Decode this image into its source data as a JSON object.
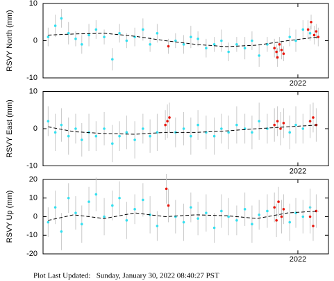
{
  "chart_data": [
    {
      "type": "scatter",
      "ylabel": "RSVY North (mm)",
      "xlim": [
        2019.5,
        2022.3
      ],
      "ylim": [
        -10,
        10
      ],
      "yticks": [
        -10,
        0,
        10
      ],
      "xticks": [
        2022
      ],
      "series": [
        {
          "color": "#33e0f0",
          "x": [
            2019.55,
            2019.62,
            2019.68,
            2019.75,
            2019.82,
            2019.88,
            2019.95,
            2020.02,
            2020.1,
            2020.18,
            2020.25,
            2020.32,
            2020.4,
            2020.48,
            2020.55,
            2020.62,
            2020.8,
            2020.88,
            2020.95,
            2021.02,
            2021.1,
            2021.18,
            2021.25,
            2021.32,
            2021.4,
            2021.48,
            2021.55,
            2021.62,
            2021.7,
            2021.92,
            2021.98,
            2022.05,
            2022.12
          ],
          "values": [
            1,
            4,
            6,
            2,
            0.5,
            -1,
            1.5,
            3,
            1,
            -5,
            2,
            0,
            1,
            3,
            -1,
            2,
            0,
            -1,
            1,
            0.5,
            -2,
            -1,
            0,
            -3,
            -1,
            -2,
            0,
            -4,
            -1,
            1,
            0,
            3,
            2
          ],
          "errors": [
            2.5,
            3,
            2.5,
            3,
            2,
            2.5,
            3,
            2.5,
            2,
            3,
            2.5,
            2,
            2.5,
            3,
            2,
            2.5,
            2,
            2.5,
            3,
            2,
            2.5,
            2,
            3,
            2.5,
            2,
            3,
            2.5,
            3,
            2,
            2.5,
            3,
            2.5,
            2
          ]
        },
        {
          "color": "#e8160c",
          "x": [
            2020.73,
            2021.77,
            2021.79,
            2021.8,
            2021.82,
            2021.84,
            2021.86,
            2022.1,
            2022.13,
            2022.16,
            2022.18,
            2022.2
          ],
          "values": [
            -1.5,
            -2,
            -3,
            -4.5,
            -1,
            -2.5,
            -3.5,
            3,
            5,
            1.5,
            2.5,
            1
          ],
          "errors": [
            2,
            2.5,
            2,
            2.5,
            2,
            2.5,
            2,
            2.5,
            2,
            2.5,
            2,
            2.5
          ]
        },
        {
          "mode": "line",
          "color": "#000000",
          "x": [
            2019.55,
            2019.8,
            2020.1,
            2020.4,
            2020.7,
            2021.0,
            2021.3,
            2021.6,
            2021.9,
            2022.2
          ],
          "values": [
            1.5,
            1.8,
            2,
            1.2,
            0,
            -1,
            -1.6,
            -1.2,
            0,
            1
          ]
        }
      ]
    },
    {
      "type": "scatter",
      "ylabel": "RSVY East (mm)",
      "xlim": [
        2019.5,
        2022.3
      ],
      "ylim": [
        -10,
        10
      ],
      "yticks": [
        -10,
        0,
        10
      ],
      "xticks": [
        2022
      ],
      "series": [
        {
          "color": "#33e0f0",
          "x": [
            2019.55,
            2019.62,
            2019.68,
            2019.75,
            2019.82,
            2019.88,
            2019.95,
            2020.02,
            2020.1,
            2020.18,
            2020.25,
            2020.32,
            2020.4,
            2020.48,
            2020.55,
            2020.62,
            2020.8,
            2020.88,
            2020.95,
            2021.02,
            2021.1,
            2021.18,
            2021.25,
            2021.32,
            2021.4,
            2021.48,
            2021.55,
            2021.62,
            2021.7,
            2021.92,
            2021.98,
            2022.05,
            2022.12
          ],
          "values": [
            2,
            -1,
            1,
            -2,
            0,
            -3,
            -1,
            -2,
            0,
            -4,
            -2,
            -1,
            -3,
            0,
            -2,
            -1,
            -1,
            0,
            -2,
            1,
            -1,
            -2,
            0,
            -1,
            1,
            0,
            -1,
            2,
            0,
            -1,
            1,
            0,
            2
          ],
          "errors": [
            4,
            5,
            4.5,
            5,
            4,
            4.5,
            5,
            4,
            4.5,
            5,
            4,
            4.5,
            5,
            4,
            4.5,
            5,
            4,
            4.5,
            5,
            4,
            4.5,
            5,
            4,
            4.5,
            5,
            4,
            4.5,
            5,
            4,
            4.5,
            5,
            4,
            4.5
          ]
        },
        {
          "color": "#e8160c",
          "x": [
            2020.7,
            2020.72,
            2020.74,
            2021.77,
            2021.8,
            2021.83,
            2021.86,
            2022.12,
            2022.15,
            2022.18
          ],
          "values": [
            1,
            2,
            3,
            1,
            2,
            0,
            1.5,
            2,
            3,
            1
          ],
          "errors": [
            4,
            4.5,
            4,
            4.5,
            4,
            4.5,
            4,
            4.5,
            4,
            4.5
          ]
        },
        {
          "mode": "line",
          "color": "#000000",
          "x": [
            2019.55,
            2019.8,
            2020.1,
            2020.4,
            2020.7,
            2021.0,
            2021.3,
            2021.6,
            2021.9,
            2022.2
          ],
          "values": [
            0.5,
            -0.8,
            -1.3,
            -1.5,
            -1,
            -1,
            -0.6,
            0,
            0.5,
            1
          ]
        }
      ]
    },
    {
      "type": "scatter",
      "ylabel": "RSVY Up (mm)",
      "xlim": [
        2019.5,
        2022.3
      ],
      "ylim": [
        -20,
        20
      ],
      "yticks": [
        -20,
        -10,
        0,
        10,
        20
      ],
      "xticks": [
        2022
      ],
      "series": [
        {
          "color": "#33e0f0",
          "x": [
            2019.55,
            2019.62,
            2019.68,
            2019.75,
            2019.82,
            2019.88,
            2019.95,
            2020.02,
            2020.1,
            2020.18,
            2020.25,
            2020.32,
            2020.4,
            2020.48,
            2020.55,
            2020.62,
            2020.8,
            2020.88,
            2020.95,
            2021.02,
            2021.1,
            2021.18,
            2021.25,
            2021.32,
            2021.4,
            2021.48,
            2021.55,
            2021.62,
            2021.7,
            2021.92,
            2021.98,
            2022.05,
            2022.12
          ],
          "values": [
            -3,
            5,
            -8,
            10,
            2,
            -4,
            8,
            12,
            0,
            6,
            10,
            -2,
            4,
            9,
            1,
            -5,
            0,
            -3,
            5,
            -1,
            2,
            -6,
            3,
            0,
            -2,
            4,
            -4,
            1,
            3,
            -3,
            2,
            0,
            5
          ],
          "errors": [
            8,
            9,
            10,
            8,
            9,
            10,
            8,
            9,
            10,
            8,
            9,
            10,
            8,
            9,
            10,
            8,
            9,
            10,
            8,
            9,
            10,
            8,
            9,
            10,
            8,
            9,
            10,
            8,
            9,
            10,
            8,
            9,
            10
          ]
        },
        {
          "color": "#e8160c",
          "x": [
            2020.71,
            2020.73,
            2021.77,
            2021.79,
            2021.81,
            2021.84,
            2021.86,
            2022.12,
            2022.15,
            2022.18
          ],
          "values": [
            15,
            6,
            5,
            -2,
            8,
            0,
            4,
            0,
            -5,
            3
          ],
          "errors": [
            8,
            9,
            8,
            9,
            8,
            9,
            8,
            9,
            8,
            9
          ]
        },
        {
          "mode": "line",
          "color": "#000000",
          "x": [
            2019.55,
            2019.8,
            2020.1,
            2020.4,
            2020.7,
            2021.0,
            2021.3,
            2021.6,
            2021.9,
            2022.2
          ],
          "values": [
            -2,
            1,
            -1,
            2,
            0,
            1,
            0.5,
            -1,
            2,
            3
          ]
        }
      ]
    }
  ],
  "footer": "Plot Last Updated:   Sunday, January 30, 2022 08:40:27 PST"
}
